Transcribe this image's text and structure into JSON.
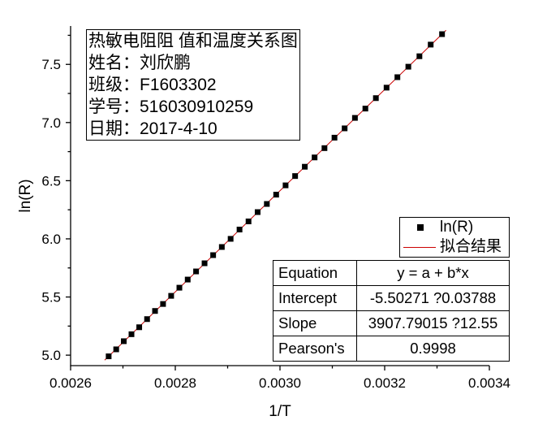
{
  "annotation": {
    "lines": [
      "热敏电阻阻 值和温度关系图",
      "姓名：刘欣鹏",
      "班级：F1603302",
      "学号：516030910259",
      "日期：2017-4-10"
    ]
  },
  "fit_table": {
    "rows": [
      {
        "name": "Equation",
        "value": "y = a + b*x"
      },
      {
        "name": "Intercept",
        "value": "-5.50271 ?0.03788"
      },
      {
        "name": "Slope",
        "value": "3907.79015 ?12.55"
      },
      {
        "name": "Pearson's",
        "value": "0.9998"
      }
    ]
  },
  "chart_data": {
    "type": "scatter",
    "xlabel": "1/T",
    "ylabel": "ln(R)",
    "xlim": [
      0.0026,
      0.0034
    ],
    "ylim": [
      4.91,
      7.83
    ],
    "x_ticks": [
      "0.0026",
      "0.0028",
      "0.0030",
      "0.0032",
      "0.0034"
    ],
    "y_ticks": [
      "5.0",
      "5.5",
      "6.0",
      "6.5",
      "7.0",
      "7.5"
    ],
    "grid": false,
    "legend_position": "middle-right",
    "series": [
      {
        "name": "ln(R)",
        "marker": "square",
        "color": "#000000",
        "x": [
          0.0026727,
          0.0026871,
          0.0027016,
          0.0027163,
          0.0027311,
          0.0027461,
          0.0027613,
          0.0027766,
          0.0027921,
          0.0028078,
          0.0028237,
          0.0028397,
          0.0028559,
          0.0028723,
          0.0028889,
          0.0029057,
          0.0029227,
          0.0029399,
          0.0029573,
          0.0029749,
          0.0029927,
          0.0030107,
          0.0030289,
          0.0030474,
          0.0030661,
          0.003085,
          0.0031041,
          0.0031235,
          0.0031432,
          0.0031631,
          0.0031832,
          0.0032036,
          0.0032243,
          0.0032452,
          0.0032664,
          0.0032879,
          0.0033096
        ],
        "y": [
          4.99,
          5.05,
          5.12,
          5.18,
          5.24,
          5.31,
          5.38,
          5.44,
          5.51,
          5.58,
          5.65,
          5.72,
          5.79,
          5.86,
          5.93,
          6.0,
          6.08,
          6.15,
          6.23,
          6.3,
          6.38,
          6.46,
          6.54,
          6.62,
          6.7,
          6.78,
          6.87,
          6.95,
          7.04,
          7.12,
          7.21,
          7.3,
          7.39,
          7.48,
          7.57,
          7.67,
          7.76
        ]
      },
      {
        "name": "拟合结果",
        "type": "line",
        "color": "#cc0000"
      }
    ]
  }
}
